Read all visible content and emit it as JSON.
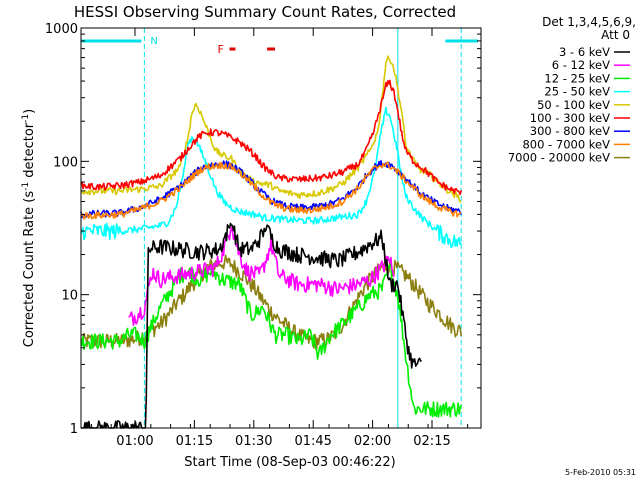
{
  "chart_data": {
    "type": "line",
    "title": "HESSI Observing Summary Count Rates, Corrected",
    "xlabel": "Start Time (08-Sep-03 00:46:22)",
    "ylabel": "Corrected Count Rate (s^-1 detector^-1)",
    "ylabel_main": "Corrected Count Rate (s",
    "ylabel_sup1": "-1",
    "ylabel_mid": " detector",
    "ylabel_sup2": "-1",
    "ylabel_end": ")",
    "x_units": "minutes since 00:46:22",
    "xlim": [
      0,
      101
    ],
    "ylim": [
      1,
      1000
    ],
    "yscale": "log",
    "x_ticks": [
      {
        "x": 13.63,
        "label": "01:00"
      },
      {
        "x": 28.63,
        "label": "01:15"
      },
      {
        "x": 43.63,
        "label": "01:30"
      },
      {
        "x": 58.63,
        "label": "01:45"
      },
      {
        "x": 73.63,
        "label": "02:00"
      },
      {
        "x": 88.63,
        "label": "02:15"
      }
    ],
    "y_ticks": [
      {
        "y": 1,
        "label": "1"
      },
      {
        "y": 10,
        "label": "10"
      },
      {
        "y": 100,
        "label": "100"
      },
      {
        "y": 1000,
        "label": "1000"
      }
    ],
    "legend": {
      "placement": "outside-right",
      "header_line1": "Det 1,3,4,5,6,9,",
      "header_line2": "Att 0"
    },
    "flags": {
      "night_label": "N",
      "night_intervals": [
        [
          0,
          16
        ],
        [
          92,
          101
        ]
      ],
      "flare_label": "F",
      "flare_intervals": [
        [
          37.5,
          39
        ],
        [
          47,
          49
        ]
      ],
      "saa_lines": [
        0,
        16,
        80,
        96
      ],
      "night_color": "#00e0e8",
      "flare_color": "#e00000"
    },
    "series": [
      {
        "name": "3 - 6 keV",
        "color": "#000000",
        "x": [
          0,
          14,
          16.4,
          17,
          20,
          25,
          30,
          35,
          38,
          40,
          43,
          45,
          47,
          48,
          50,
          55,
          60,
          65,
          70,
          73,
          76,
          78,
          80,
          82,
          83,
          84,
          86
        ],
        "y": [
          1,
          1,
          1,
          22,
          23,
          22,
          21,
          22,
          35,
          22,
          22,
          26,
          33,
          27,
          22,
          20,
          19,
          18,
          21,
          24,
          27,
          12,
          12,
          5,
          3.5,
          3,
          3
        ]
      },
      {
        "name": "6 - 12 keV",
        "color": "#ff00ff",
        "x": [
          12,
          14,
          16,
          18,
          20,
          25,
          30,
          34,
          36,
          38,
          40,
          42,
          45,
          46,
          48,
          50,
          55,
          60,
          65,
          70,
          73,
          76,
          78,
          79
        ],
        "y": [
          6.5,
          7,
          8,
          15,
          13,
          14,
          15,
          16,
          22,
          33,
          20,
          15,
          14,
          16,
          24,
          14,
          12,
          12,
          11,
          12,
          13,
          16,
          19,
          13
        ]
      },
      {
        "name": "12 - 25 keV",
        "color": "#00ee00",
        "x": [
          0,
          10,
          12,
          14,
          16,
          18,
          20,
          22,
          25,
          27,
          30,
          33,
          36,
          40,
          43,
          46,
          49,
          52,
          55,
          58,
          60,
          63,
          66,
          70,
          73,
          76,
          78,
          80,
          82,
          84,
          86,
          88,
          90,
          92,
          94,
          96
        ],
        "y": [
          4.5,
          4.5,
          5,
          5,
          4.5,
          6,
          8,
          10,
          14,
          15,
          13,
          15,
          13,
          12,
          7,
          8,
          5,
          5,
          4.5,
          5,
          3.5,
          5,
          6,
          8,
          10,
          11,
          16,
          10,
          3.5,
          1.4,
          1.4,
          1.4,
          1.4,
          1.4,
          1.4,
          1.4
        ]
      },
      {
        "name": "25 - 50 keV",
        "color": "#00ffff",
        "x": [
          0,
          10,
          15,
          20,
          22,
          24,
          26,
          27,
          28,
          29,
          30,
          32,
          34,
          36,
          38,
          40,
          42,
          44,
          46,
          50,
          55,
          60,
          65,
          70,
          72,
          74,
          76,
          77,
          78,
          79,
          80,
          81,
          82,
          84,
          86,
          90,
          93,
          96
        ],
        "y": [
          30,
          30,
          31,
          33,
          35,
          45,
          85,
          135,
          150,
          145,
          125,
          90,
          62,
          50,
          45,
          42,
          41,
          40,
          38,
          37,
          36,
          36,
          38,
          40,
          50,
          80,
          180,
          240,
          220,
          160,
          115,
          75,
          55,
          45,
          38,
          30,
          26,
          24
        ]
      },
      {
        "name": "50 - 100 keV",
        "color": "#d8c800",
        "x": [
          0,
          10,
          15,
          20,
          25,
          27,
          28,
          29,
          30,
          32,
          34,
          36,
          38,
          40,
          42,
          44,
          46,
          48,
          50,
          55,
          60,
          63,
          66,
          70,
          73,
          75,
          76,
          77,
          78,
          79,
          80,
          81,
          82,
          84,
          86,
          88,
          90,
          93,
          96
        ],
        "y": [
          60,
          60,
          62,
          65,
          90,
          150,
          230,
          270,
          240,
          170,
          120,
          110,
          105,
          85,
          75,
          70,
          68,
          66,
          60,
          56,
          58,
          62,
          68,
          90,
          120,
          170,
          300,
          560,
          600,
          500,
          350,
          230,
          130,
          100,
          85,
          80,
          70,
          60,
          52
        ]
      },
      {
        "name": "100 - 300 keV",
        "color": "#ff0000",
        "x": [
          0,
          5,
          10,
          15,
          20,
          25,
          28,
          30,
          32,
          34,
          36,
          38,
          40,
          42,
          44,
          46,
          48,
          50,
          55,
          60,
          63,
          66,
          70,
          72,
          74,
          76,
          77,
          78,
          79,
          80,
          81,
          82,
          84,
          86,
          88,
          90,
          93,
          96
        ],
        "y": [
          66,
          64,
          66,
          70,
          78,
          105,
          135,
          155,
          165,
          165,
          160,
          150,
          140,
          125,
          110,
          92,
          82,
          75,
          73,
          75,
          78,
          83,
          95,
          120,
          170,
          280,
          370,
          390,
          330,
          240,
          160,
          120,
          100,
          90,
          80,
          70,
          62,
          58
        ]
      },
      {
        "name": "300 - 800 keV",
        "color": "#0000ff",
        "x": [
          0,
          10,
          15,
          20,
          25,
          28,
          30,
          32,
          34,
          36,
          38,
          40,
          42,
          44,
          46,
          48,
          50,
          52,
          55,
          58,
          60,
          63,
          66,
          70,
          72,
          74,
          76,
          78,
          80,
          82,
          84,
          86,
          88,
          90,
          93,
          96
        ],
        "y": [
          40,
          41,
          45,
          52,
          65,
          78,
          88,
          93,
          95,
          96,
          93,
          85,
          75,
          65,
          57,
          51,
          48,
          46,
          45,
          45,
          46,
          48,
          52,
          65,
          78,
          90,
          97,
          95,
          85,
          74,
          65,
          57,
          52,
          48,
          44,
          42
        ]
      },
      {
        "name": "800 - 7000 keV",
        "color": "#ff8000",
        "x": [
          0,
          10,
          15,
          20,
          25,
          28,
          30,
          32,
          34,
          36,
          38,
          40,
          42,
          44,
          46,
          48,
          50,
          52,
          55,
          58,
          60,
          63,
          66,
          70,
          72,
          74,
          76,
          78,
          80,
          82,
          84,
          86,
          88,
          90,
          93,
          96
        ],
        "y": [
          39,
          40,
          44,
          50,
          63,
          76,
          86,
          91,
          93,
          94,
          91,
          83,
          73,
          63,
          55,
          49,
          46,
          44,
          43,
          43,
          44,
          46,
          50,
          63,
          76,
          88,
          95,
          93,
          83,
          72,
          63,
          55,
          50,
          46,
          42,
          40
        ]
      },
      {
        "name": "7000 - 20000 keV",
        "color": "#8b7f10",
        "x": [
          0,
          10,
          12,
          14,
          16,
          18,
          20,
          22,
          24,
          26,
          28,
          30,
          32,
          34,
          36,
          38,
          40,
          42,
          44,
          46,
          48,
          50,
          52,
          54,
          56,
          58,
          60,
          62,
          64,
          66,
          68,
          70,
          72,
          74,
          76,
          78,
          80,
          82,
          84,
          86,
          88,
          90,
          92,
          94,
          96
        ],
        "y": [
          4.5,
          4.5,
          4.6,
          4.7,
          5,
          5.5,
          6,
          7,
          8.5,
          10,
          12,
          14,
          16,
          17,
          17.5,
          17,
          15,
          13,
          11,
          9,
          7.5,
          6.5,
          5.8,
          5.2,
          4.8,
          4.5,
          4.5,
          4.6,
          5,
          6,
          7.5,
          9.5,
          12,
          14,
          16,
          16.5,
          15.5,
          14,
          12,
          10,
          8.5,
          7.5,
          6.5,
          5.7,
          5.3
        ]
      }
    ]
  },
  "footer": {
    "date": "5-Feb-2010 05:31"
  }
}
